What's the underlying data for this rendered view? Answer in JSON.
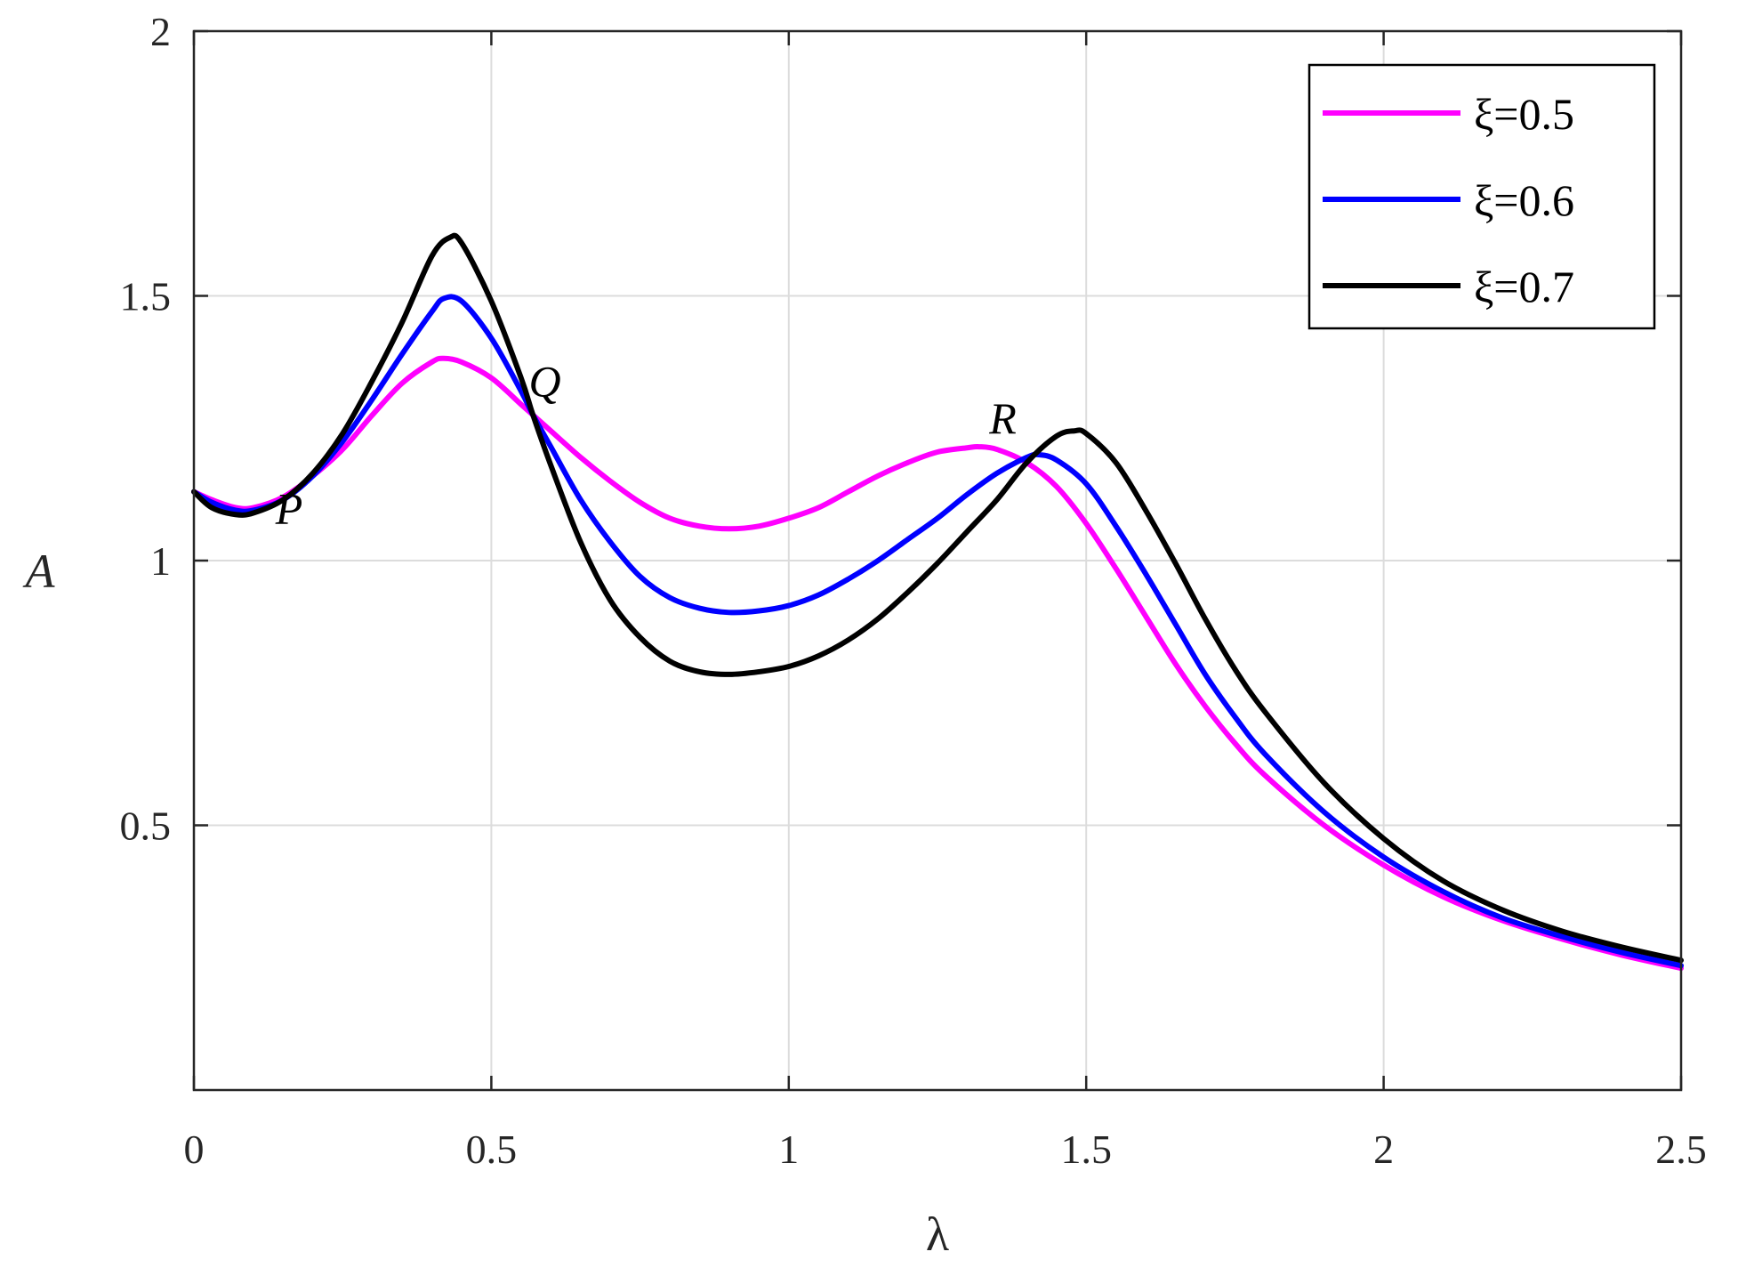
{
  "chart_data": {
    "type": "line",
    "title": "",
    "xlabel": "λ",
    "ylabel": "A",
    "xlim": [
      0,
      2.5
    ],
    "ylim": [
      0,
      2
    ],
    "xticks": [
      0,
      0.5,
      1,
      1.5,
      2,
      2.5
    ],
    "xtick_labels": [
      "0",
      "0.5",
      "1",
      "1.5",
      "2",
      "2.5"
    ],
    "yticks": [
      0.5,
      1,
      1.5,
      2
    ],
    "ytick_labels": [
      "0.5",
      "1",
      "1.5",
      "2"
    ],
    "grid": true,
    "legend_position": "top-right",
    "series": [
      {
        "name": "ξ=0.5",
        "color": "#ff00ff",
        "points": [
          [
            0,
            1.13
          ],
          [
            0.03,
            1.115
          ],
          [
            0.07,
            1.1
          ],
          [
            0.1,
            1.1
          ],
          [
            0.15,
            1.12
          ],
          [
            0.2,
            1.16
          ],
          [
            0.25,
            1.21
          ],
          [
            0.3,
            1.275
          ],
          [
            0.35,
            1.335
          ],
          [
            0.4,
            1.375
          ],
          [
            0.42,
            1.382
          ],
          [
            0.45,
            1.375
          ],
          [
            0.5,
            1.345
          ],
          [
            0.55,
            1.295
          ],
          [
            0.57,
            1.275
          ],
          [
            0.6,
            1.245
          ],
          [
            0.65,
            1.195
          ],
          [
            0.7,
            1.15
          ],
          [
            0.75,
            1.11
          ],
          [
            0.8,
            1.08
          ],
          [
            0.85,
            1.065
          ],
          [
            0.9,
            1.06
          ],
          [
            0.95,
            1.065
          ],
          [
            1.0,
            1.08
          ],
          [
            1.05,
            1.1
          ],
          [
            1.1,
            1.13
          ],
          [
            1.15,
            1.16
          ],
          [
            1.2,
            1.185
          ],
          [
            1.25,
            1.205
          ],
          [
            1.3,
            1.213
          ],
          [
            1.32,
            1.215
          ],
          [
            1.35,
            1.21
          ],
          [
            1.4,
            1.185
          ],
          [
            1.45,
            1.14
          ],
          [
            1.5,
            1.07
          ],
          [
            1.55,
            0.985
          ],
          [
            1.6,
            0.895
          ],
          [
            1.65,
            0.805
          ],
          [
            1.7,
            0.725
          ],
          [
            1.75,
            0.655
          ],
          [
            1.8,
            0.595
          ],
          [
            1.9,
            0.5
          ],
          [
            2.0,
            0.425
          ],
          [
            2.1,
            0.365
          ],
          [
            2.2,
            0.32
          ],
          [
            2.3,
            0.285
          ],
          [
            2.4,
            0.255
          ],
          [
            2.5,
            0.23
          ]
        ]
      },
      {
        "name": "ξ=0.6",
        "color": "#0000ff",
        "points": [
          [
            0,
            1.13
          ],
          [
            0.03,
            1.11
          ],
          [
            0.07,
            1.095
          ],
          [
            0.1,
            1.095
          ],
          [
            0.15,
            1.115
          ],
          [
            0.2,
            1.16
          ],
          [
            0.25,
            1.225
          ],
          [
            0.3,
            1.305
          ],
          [
            0.35,
            1.39
          ],
          [
            0.4,
            1.47
          ],
          [
            0.42,
            1.495
          ],
          [
            0.45,
            1.49
          ],
          [
            0.5,
            1.42
          ],
          [
            0.55,
            1.32
          ],
          [
            0.57,
            1.275
          ],
          [
            0.6,
            1.215
          ],
          [
            0.65,
            1.115
          ],
          [
            0.7,
            1.035
          ],
          [
            0.75,
            0.97
          ],
          [
            0.8,
            0.93
          ],
          [
            0.85,
            0.91
          ],
          [
            0.9,
            0.902
          ],
          [
            0.95,
            0.905
          ],
          [
            1.0,
            0.915
          ],
          [
            1.05,
            0.935
          ],
          [
            1.1,
            0.965
          ],
          [
            1.15,
            1.0
          ],
          [
            1.2,
            1.04
          ],
          [
            1.25,
            1.08
          ],
          [
            1.3,
            1.125
          ],
          [
            1.35,
            1.165
          ],
          [
            1.4,
            1.195
          ],
          [
            1.42,
            1.2
          ],
          [
            1.45,
            1.19
          ],
          [
            1.5,
            1.145
          ],
          [
            1.55,
            1.065
          ],
          [
            1.6,
            0.975
          ],
          [
            1.65,
            0.88
          ],
          [
            1.7,
            0.785
          ],
          [
            1.75,
            0.705
          ],
          [
            1.8,
            0.635
          ],
          [
            1.9,
            0.525
          ],
          [
            2.0,
            0.44
          ],
          [
            2.1,
            0.375
          ],
          [
            2.2,
            0.325
          ],
          [
            2.3,
            0.29
          ],
          [
            2.4,
            0.26
          ],
          [
            2.5,
            0.235
          ]
        ]
      },
      {
        "name": "ξ=0.7",
        "color": "#000000",
        "points": [
          [
            0,
            1.13
          ],
          [
            0.03,
            1.1
          ],
          [
            0.07,
            1.087
          ],
          [
            0.1,
            1.09
          ],
          [
            0.15,
            1.115
          ],
          [
            0.2,
            1.165
          ],
          [
            0.25,
            1.24
          ],
          [
            0.3,
            1.34
          ],
          [
            0.35,
            1.45
          ],
          [
            0.4,
            1.575
          ],
          [
            0.43,
            1.61
          ],
          [
            0.45,
            1.6
          ],
          [
            0.5,
            1.49
          ],
          [
            0.55,
            1.345
          ],
          [
            0.57,
            1.275
          ],
          [
            0.6,
            1.18
          ],
          [
            0.65,
            1.035
          ],
          [
            0.7,
            0.925
          ],
          [
            0.75,
            0.855
          ],
          [
            0.8,
            0.81
          ],
          [
            0.85,
            0.79
          ],
          [
            0.9,
            0.785
          ],
          [
            0.95,
            0.79
          ],
          [
            1.0,
            0.8
          ],
          [
            1.05,
            0.82
          ],
          [
            1.1,
            0.85
          ],
          [
            1.15,
            0.89
          ],
          [
            1.2,
            0.94
          ],
          [
            1.25,
            0.995
          ],
          [
            1.3,
            1.055
          ],
          [
            1.35,
            1.115
          ],
          [
            1.4,
            1.185
          ],
          [
            1.45,
            1.235
          ],
          [
            1.48,
            1.245
          ],
          [
            1.5,
            1.24
          ],
          [
            1.55,
            1.185
          ],
          [
            1.6,
            1.095
          ],
          [
            1.65,
            0.995
          ],
          [
            1.7,
            0.89
          ],
          [
            1.75,
            0.795
          ],
          [
            1.8,
            0.715
          ],
          [
            1.9,
            0.58
          ],
          [
            2.0,
            0.475
          ],
          [
            2.1,
            0.395
          ],
          [
            2.2,
            0.34
          ],
          [
            2.3,
            0.3
          ],
          [
            2.4,
            0.27
          ],
          [
            2.5,
            0.245
          ]
        ]
      }
    ],
    "annotations": [
      {
        "text": "P",
        "x": 0.16,
        "y": 1.07
      },
      {
        "text": "Q",
        "x": 0.59,
        "y": 1.31
      },
      {
        "text": "R",
        "x": 1.36,
        "y": 1.24
      }
    ]
  }
}
